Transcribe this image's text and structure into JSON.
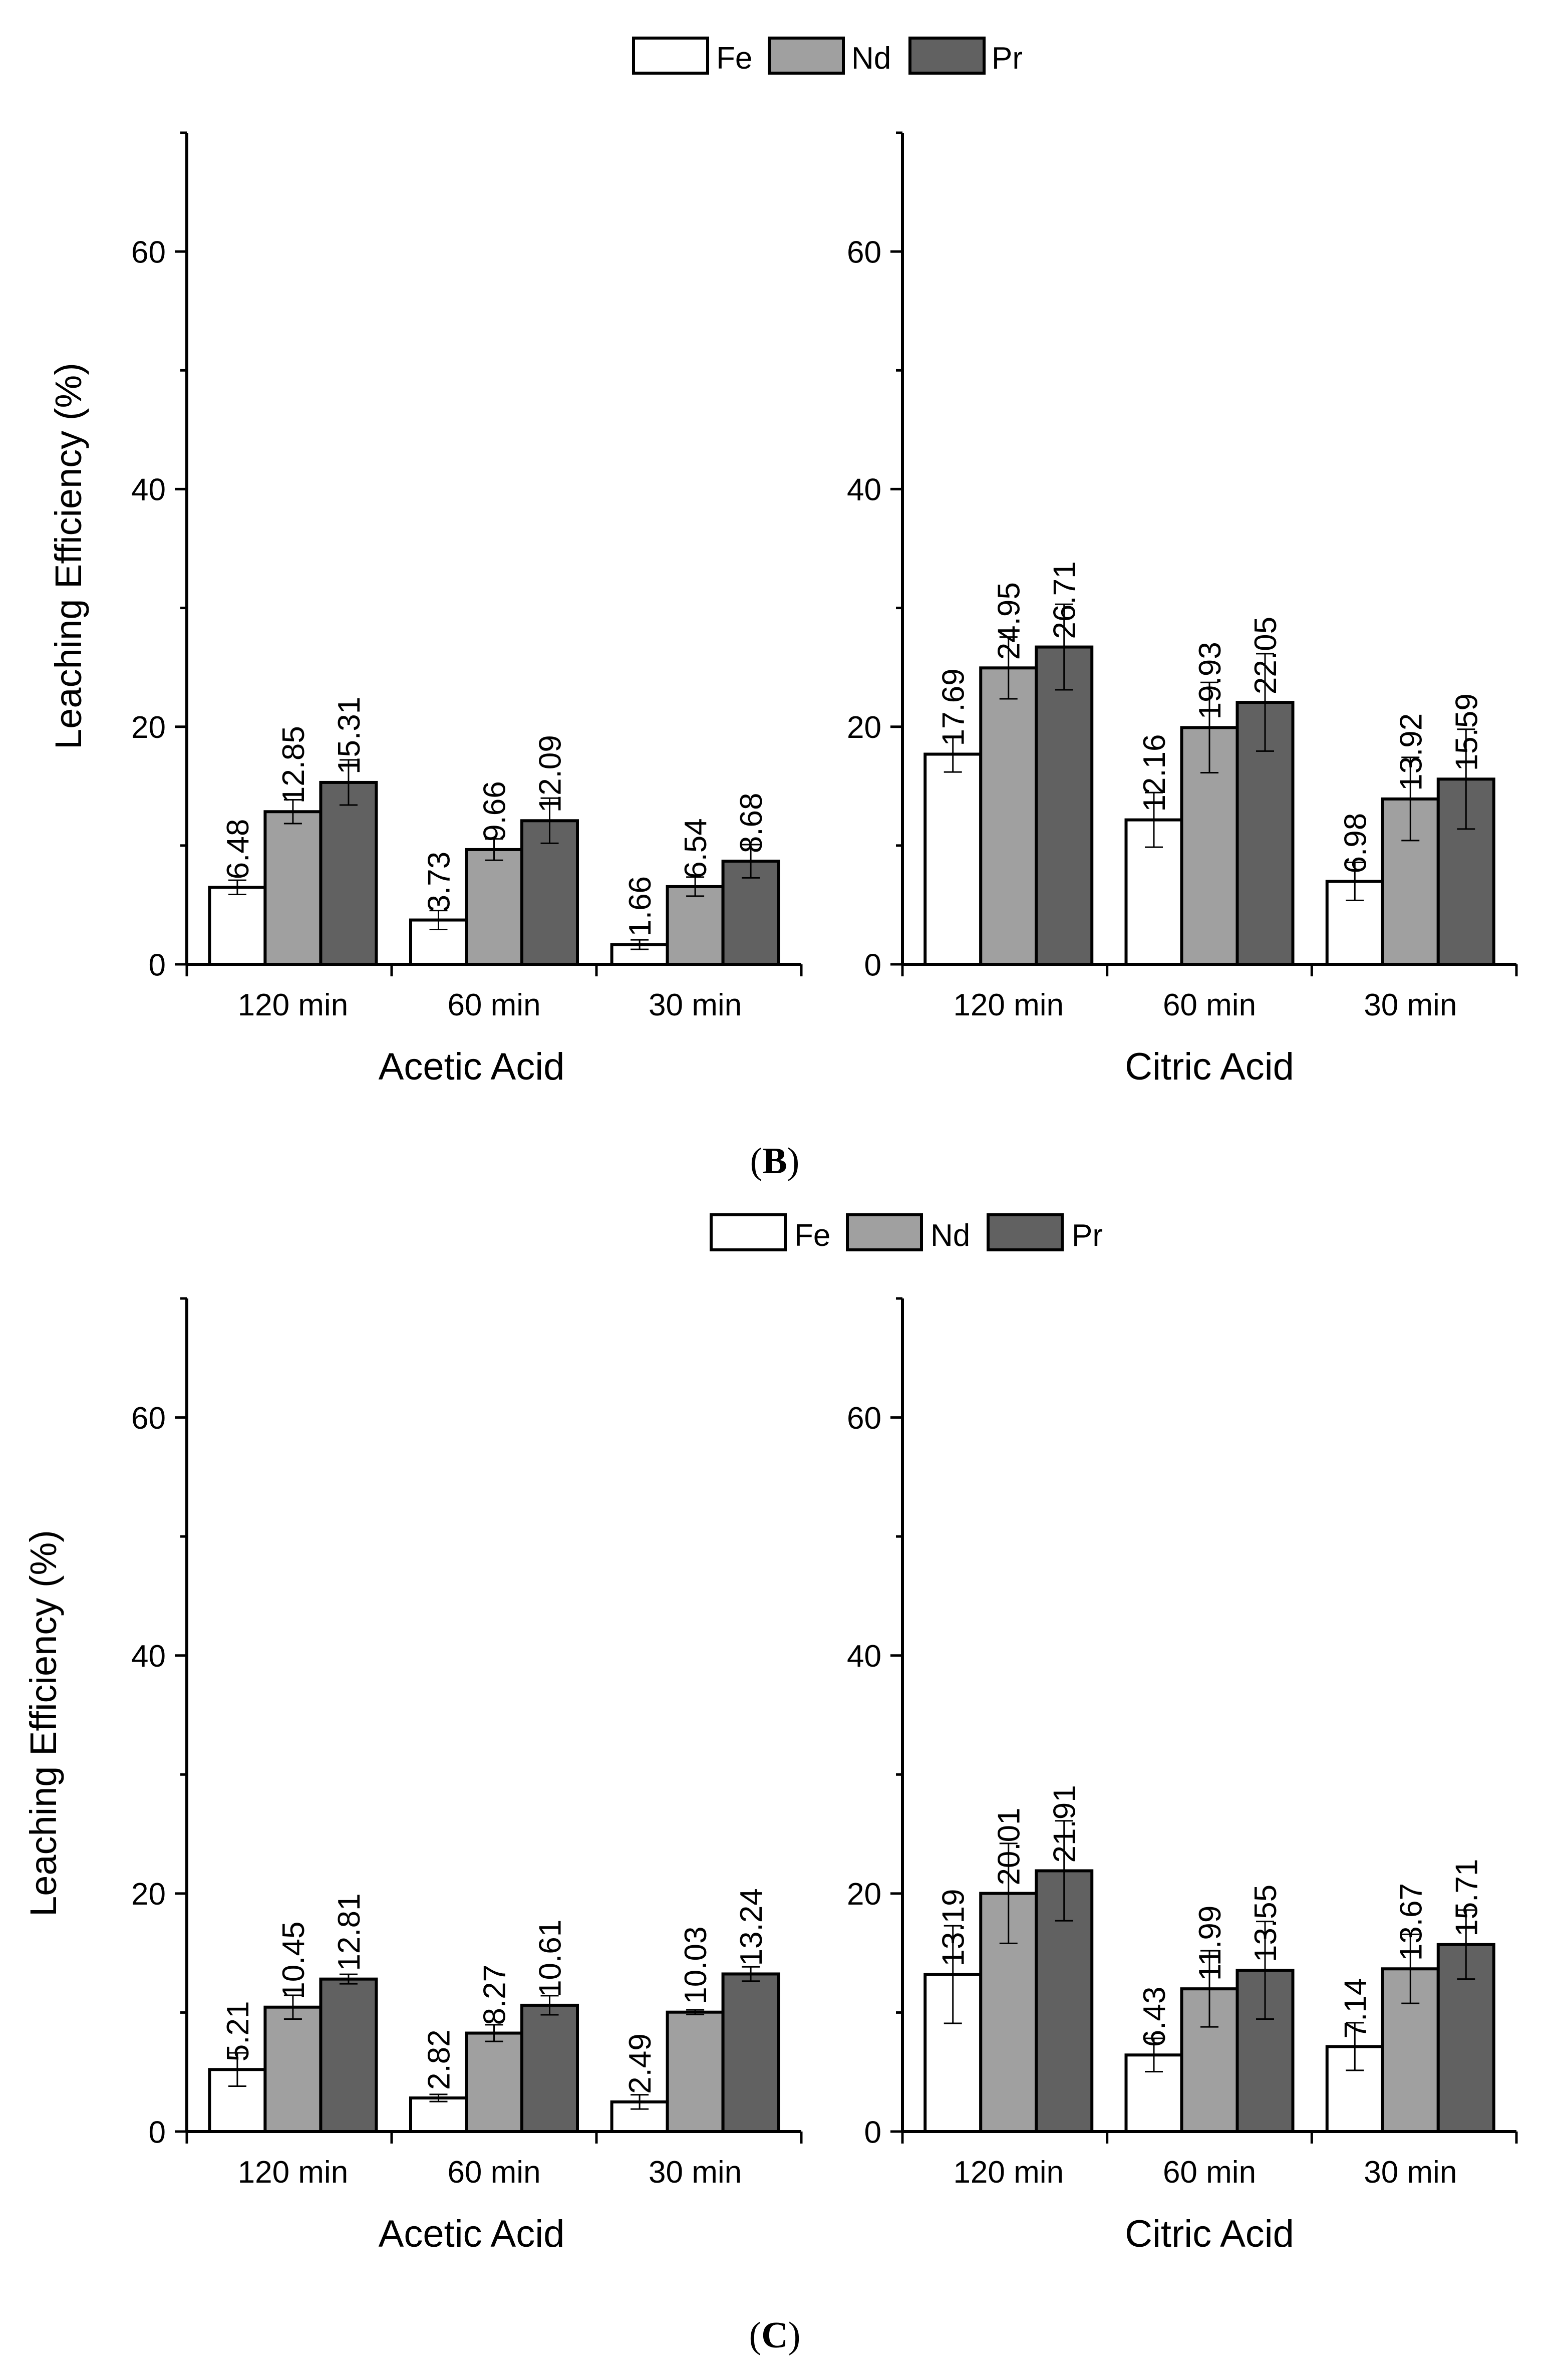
{
  "legend": {
    "items": [
      {
        "label": "Fe",
        "color": "#ffffff"
      },
      {
        "label": "Nd",
        "color": "#a0a0a0"
      },
      {
        "label": "Pr",
        "color": "#616161"
      }
    ]
  },
  "ylabel": "Leaching Efficiency (%)",
  "panels": [
    {
      "caption": "(B)",
      "caption_letter": "B"
    },
    {
      "caption": "(C)",
      "caption_letter": "C"
    }
  ],
  "chart_data": [
    {
      "type": "bar",
      "panel": "B",
      "title": "",
      "xlabel": "Acetic Acid",
      "ylabel": "Leaching Efficiency (%)",
      "ylim": [
        0,
        70
      ],
      "yticks": [
        0,
        20,
        40,
        60
      ],
      "categories": [
        "120 min",
        "60 min",
        "30 min"
      ],
      "series": [
        {
          "name": "Fe",
          "values": [
            6.48,
            3.73,
            1.66
          ],
          "labels": [
            "6.48",
            "3.73",
            "1.66"
          ],
          "errors": [
            0.6,
            0.8,
            0.4
          ]
        },
        {
          "name": "Nd",
          "values": [
            12.85,
            9.66,
            6.54
          ],
          "labels": [
            "12.85",
            "9.66",
            "6.54"
          ],
          "errors": [
            1.0,
            0.9,
            0.8
          ]
        },
        {
          "name": "Pr",
          "values": [
            15.31,
            12.09,
            8.68
          ],
          "labels": [
            "15.31",
            "12.09",
            "8.68"
          ],
          "errors": [
            1.9,
            1.9,
            1.4
          ]
        }
      ]
    },
    {
      "type": "bar",
      "panel": "B",
      "title": "",
      "xlabel": "Citric Acid",
      "ylabel": "",
      "ylim": [
        0,
        70
      ],
      "yticks": [
        0,
        20,
        40,
        60
      ],
      "categories": [
        "120 min",
        "60 min",
        "30 min"
      ],
      "series": [
        {
          "name": "Fe",
          "values": [
            17.69,
            12.16,
            6.98
          ],
          "labels": [
            "17.69",
            "12.16",
            "6.98"
          ],
          "errors": [
            1.5,
            2.3,
            1.6
          ]
        },
        {
          "name": "Nd",
          "values": [
            24.95,
            19.93,
            13.92
          ],
          "labels": [
            "24.95",
            "19.93",
            "13.92"
          ],
          "errors": [
            2.6,
            3.8,
            3.5
          ]
        },
        {
          "name": "Pr",
          "values": [
            26.71,
            22.05,
            15.59
          ],
          "labels": [
            "26.71",
            "22.05",
            "15.59"
          ],
          "errors": [
            3.6,
            4.1,
            4.2
          ]
        }
      ]
    },
    {
      "type": "bar",
      "panel": "C",
      "title": "",
      "xlabel": "Acetic Acid",
      "ylabel": "Leaching Efficiency (%)",
      "ylim": [
        0,
        70
      ],
      "yticks": [
        0,
        20,
        40,
        60
      ],
      "categories": [
        "120 min",
        "60 min",
        "30 min"
      ],
      "series": [
        {
          "name": "Fe",
          "values": [
            5.21,
            2.82,
            2.49
          ],
          "labels": [
            "5.21",
            "2.82",
            "2.49"
          ],
          "errors": [
            1.4,
            0.3,
            0.6
          ]
        },
        {
          "name": "Nd",
          "values": [
            10.45,
            8.27,
            10.03
          ],
          "labels": [
            "10.45",
            "8.27",
            "10.03"
          ],
          "errors": [
            1.0,
            0.7,
            0.2
          ]
        },
        {
          "name": "Pr",
          "values": [
            12.81,
            10.61,
            13.24
          ],
          "labels": [
            "12.81",
            "10.61",
            "13.24"
          ],
          "errors": [
            0.4,
            0.8,
            0.6
          ]
        }
      ]
    },
    {
      "type": "bar",
      "panel": "C",
      "title": "",
      "xlabel": "Citric Acid",
      "ylabel": "",
      "ylim": [
        0,
        70
      ],
      "yticks": [
        0,
        20,
        40,
        60
      ],
      "categories": [
        "120 min",
        "60 min",
        "30 min"
      ],
      "series": [
        {
          "name": "Fe",
          "values": [
            13.19,
            6.43,
            7.14
          ],
          "labels": [
            "13.19",
            "6.43",
            "7.14"
          ],
          "errors": [
            4.1,
            1.4,
            2.0
          ]
        },
        {
          "name": "Nd",
          "values": [
            20.01,
            11.99,
            13.67
          ],
          "labels": [
            "20.01",
            "11.99",
            "13.67"
          ],
          "errors": [
            4.2,
            3.2,
            2.9
          ]
        },
        {
          "name": "Pr",
          "values": [
            21.91,
            13.55,
            15.71
          ],
          "labels": [
            "21.91",
            "13.55",
            "15.71"
          ],
          "errors": [
            4.2,
            4.1,
            2.9
          ]
        }
      ]
    }
  ]
}
